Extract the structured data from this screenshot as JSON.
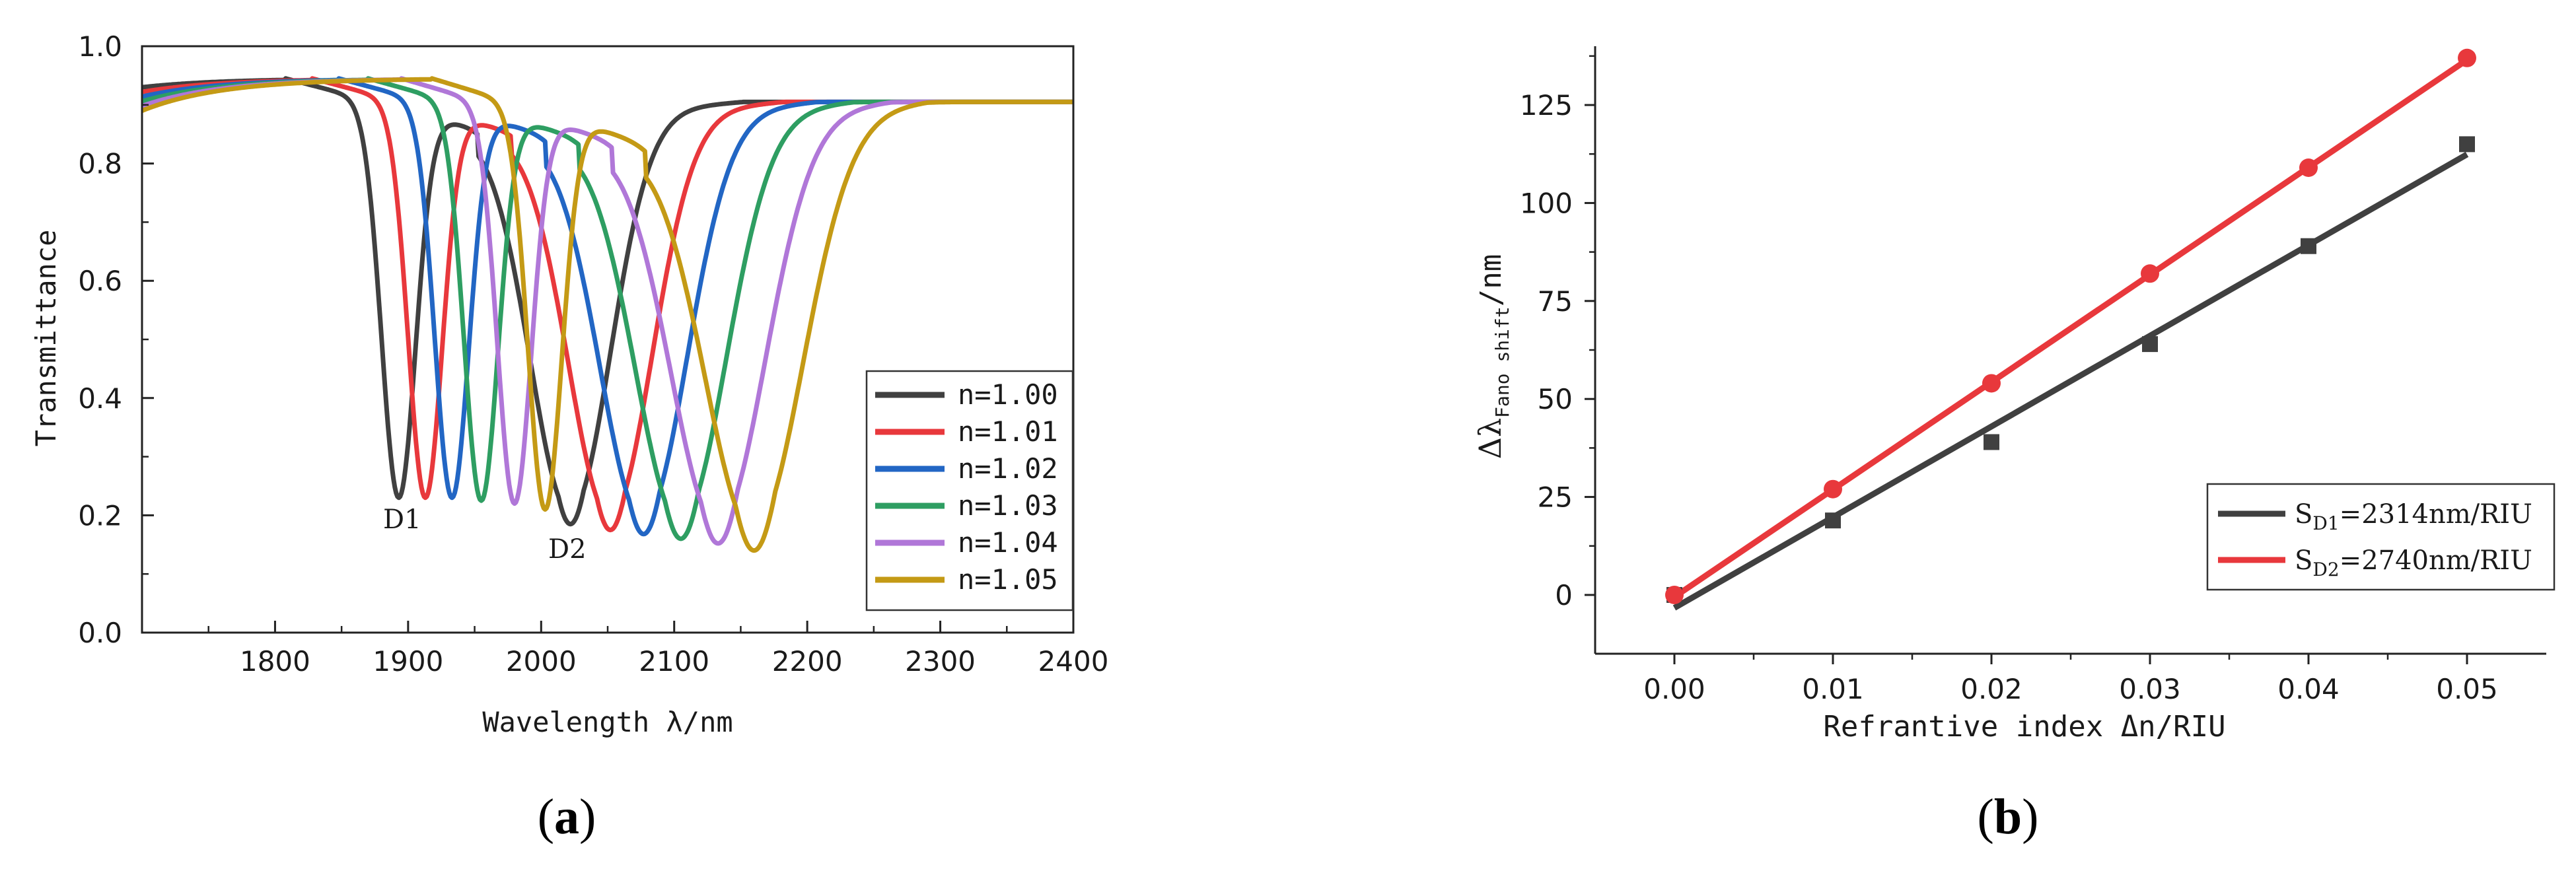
{
  "chart_data": [
    {
      "panel": "a",
      "type": "line",
      "panel_label_open": "(",
      "panel_label_letter": "a",
      "panel_label_close": ")",
      "xlabel": "Wavelength λ/nm",
      "ylabel": "Transmittance",
      "xlim": [
        1700,
        2400
      ],
      "ylim": [
        0,
        1.0
      ],
      "xticks": [
        1800,
        1900,
        2000,
        2100,
        2200,
        2300,
        2400
      ],
      "yticks": [
        "0.0",
        "0.2",
        "0.4",
        "0.6",
        "0.8",
        "1.0"
      ],
      "grid": false,
      "legend_position": "bottom-right",
      "annotations": [
        {
          "text": "D1",
          "x": 1880,
          "y": 0.2
        },
        {
          "text": "D2",
          "x": 2025,
          "y": 0.14
        }
      ],
      "series": [
        {
          "name": "n=1.00",
          "color": "#404040",
          "d1": [
            1893,
            0.23
          ],
          "peak": [
            1952,
            0.86
          ],
          "d2": [
            2022,
            0.185
          ]
        },
        {
          "name": "n=1.01",
          "color": "#e8383c",
          "d1": [
            1913,
            0.23
          ],
          "peak": [
            1977,
            0.855
          ],
          "d2": [
            2052,
            0.175
          ]
        },
        {
          "name": "n=1.02",
          "color": "#2266c4",
          "d1": [
            1933,
            0.23
          ],
          "peak": [
            2003,
            0.85
          ],
          "d2": [
            2077,
            0.168
          ]
        },
        {
          "name": "n=1.03",
          "color": "#2e9e62",
          "d1": [
            1955,
            0.225
          ],
          "peak": [
            2028,
            0.845
          ],
          "d2": [
            2105,
            0.16
          ]
        },
        {
          "name": "n=1.04",
          "color": "#b077d8",
          "d1": [
            1980,
            0.22
          ],
          "peak": [
            2053,
            0.84
          ],
          "d2": [
            2133,
            0.152
          ]
        },
        {
          "name": "n=1.05",
          "color": "#c49a15",
          "d1": [
            2003,
            0.21
          ],
          "peak": [
            2078,
            0.835
          ],
          "d2": [
            2160,
            0.14
          ]
        }
      ]
    },
    {
      "panel": "b",
      "type": "scatter",
      "panel_label_open": "(",
      "panel_label_letter": "b",
      "panel_label_close": ")",
      "xlabel": "Refrantive index Δn/RIU",
      "ylabel": "Δλ",
      "ylabel_sub": "Fano shift",
      "ylabel_unit": "/nm",
      "xlim": [
        -0.005,
        0.055
      ],
      "ylim": [
        -15,
        140
      ],
      "xticks": [
        "0.00",
        "0.01",
        "0.02",
        "0.03",
        "0.04",
        "0.05"
      ],
      "yticks": [
        "0",
        "25",
        "50",
        "75",
        "100",
        "125"
      ],
      "grid": false,
      "legend_position": "bottom-right",
      "series": [
        {
          "name_main": "S",
          "name_sub": "D1",
          "name_rest": "=2314nm/RIU",
          "color": "#404040",
          "marker": "square",
          "x": [
            0.0,
            0.01,
            0.02,
            0.03,
            0.04,
            0.05
          ],
          "y": [
            0,
            19,
            39,
            64,
            89,
            115
          ],
          "fit": [
            [
              0.0,
              -3.3
            ],
            [
              0.05,
              112.4
            ]
          ]
        },
        {
          "name_main": "S",
          "name_sub": "D2",
          "name_rest": "=2740nm/RIU",
          "color": "#e8383c",
          "marker": "circle",
          "x": [
            0.0,
            0.01,
            0.02,
            0.03,
            0.04,
            0.05
          ],
          "y": [
            0,
            27,
            54,
            82,
            109,
            137
          ],
          "fit": [
            [
              0.0,
              -0.5
            ],
            [
              0.05,
              136.5
            ]
          ]
        }
      ]
    }
  ]
}
